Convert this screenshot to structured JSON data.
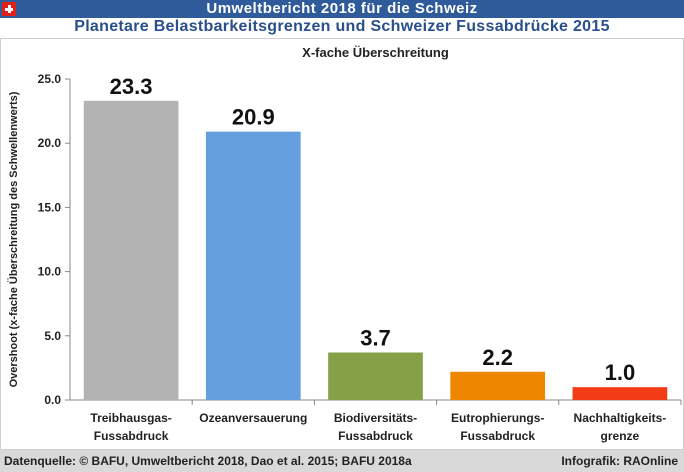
{
  "header": {
    "title": "Umweltbericht 2018 für die Schweiz",
    "flag_icon": "swiss-flag-icon"
  },
  "subtitle": "Planetare Belastbarkeitsgrenzen und Schweizer Fussabdrücke 2015",
  "chart_data": {
    "type": "bar",
    "title": "X-fache Überschreitung",
    "xlabel": "",
    "ylabel": "Overshoot (x-fache Überschreitung des Schwellenwerts)",
    "ylim": [
      0,
      25
    ],
    "yticks": [
      "0.0",
      "5.0",
      "10.0",
      "15.0",
      "20.0",
      "25.0"
    ],
    "categories": [
      [
        "Treibhausgas-",
        "Fussabdruck"
      ],
      [
        "Ozeanversauerung"
      ],
      [
        "Biodiversitäts-",
        "Fussabdruck"
      ],
      [
        "Eutrophierungs-",
        "Fussabdruck"
      ],
      [
        "Nachhaltigkeits-",
        "grenze"
      ]
    ],
    "values": [
      23.3,
      20.9,
      3.7,
      2.2,
      1.0
    ],
    "labels": [
      "23.3",
      "20.9",
      "3.7",
      "2.2",
      "1.0"
    ],
    "colors": [
      "#b3b3b3",
      "#63a0dd",
      "#86a048",
      "#ef8600",
      "#f23c16"
    ],
    "grid": false,
    "legend": "none"
  },
  "footer": {
    "source": "Datenquelle: © BAFU, Umweltbericht 2018, Dao et al. 2015; BAFU 2018a",
    "credit": "Infografik: RAOnline"
  }
}
